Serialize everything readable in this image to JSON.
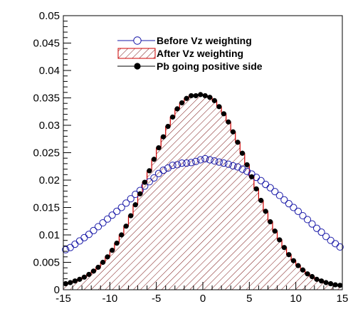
{
  "chart_data": {
    "type": "line",
    "title": "",
    "xlabel": "",
    "ylabel": "",
    "xlim": [
      -15,
      15
    ],
    "ylim": [
      0,
      0.05
    ],
    "xticks": [
      -15,
      -10,
      -5,
      0,
      5,
      10,
      15
    ],
    "yticks": [
      0,
      0.005,
      0.01,
      0.015,
      0.02,
      0.025,
      0.03,
      0.035,
      0.04,
      0.045,
      0.05
    ],
    "xtick_labels": [
      "-15",
      "-10",
      "-5",
      "0",
      "5",
      "10",
      "15"
    ],
    "ytick_labels": [
      "0",
      "0.005",
      "0.01",
      "0.015",
      "0.02",
      "0.025",
      "0.03",
      "0.035",
      "0.04",
      "0.045",
      "0.05"
    ],
    "grid": false,
    "legend_position": "top-center",
    "bin_width": 0.5,
    "x": [
      -14.75,
      -14.25,
      -13.75,
      -13.25,
      -12.75,
      -12.25,
      -11.75,
      -11.25,
      -10.75,
      -10.25,
      -9.75,
      -9.25,
      -8.75,
      -8.25,
      -7.75,
      -7.25,
      -6.75,
      -6.25,
      -5.75,
      -5.25,
      -4.75,
      -4.25,
      -3.75,
      -3.25,
      -2.75,
      -2.25,
      -1.75,
      -1.25,
      -0.75,
      -0.25,
      0.25,
      0.75,
      1.25,
      1.75,
      2.25,
      2.75,
      3.25,
      3.75,
      4.25,
      4.75,
      5.25,
      5.75,
      6.25,
      6.75,
      7.25,
      7.75,
      8.25,
      8.75,
      9.25,
      9.75,
      10.25,
      10.75,
      11.25,
      11.75,
      12.25,
      12.75,
      13.25,
      13.75,
      14.25,
      14.75
    ],
    "series": [
      {
        "name": "Before Vz weighting",
        "style": "open-circle",
        "color": "#1a1aa8",
        "values": [
          0.0073,
          0.0077,
          0.0083,
          0.0089,
          0.0095,
          0.0101,
          0.0108,
          0.0115,
          0.0122,
          0.0129,
          0.0136,
          0.0143,
          0.015,
          0.0158,
          0.0166,
          0.0174,
          0.0181,
          0.0189,
          0.0197,
          0.0204,
          0.0212,
          0.0218,
          0.0222,
          0.0227,
          0.0228,
          0.0231,
          0.0231,
          0.0232,
          0.0234,
          0.0237,
          0.0239,
          0.0237,
          0.0235,
          0.0233,
          0.0231,
          0.0229,
          0.0226,
          0.0224,
          0.022,
          0.0216,
          0.0211,
          0.0205,
          0.0199,
          0.0192,
          0.0186,
          0.0179,
          0.0172,
          0.0164,
          0.0157,
          0.015,
          0.0143,
          0.0135,
          0.0128,
          0.012,
          0.0112,
          0.0105,
          0.0097,
          0.009,
          0.0084,
          0.0078
        ]
      },
      {
        "name": "After Vz weighting",
        "style": "hatched-histogram",
        "color": "#d10000",
        "values": [
          0.0011,
          0.0013,
          0.0016,
          0.0019,
          0.0023,
          0.0028,
          0.0034,
          0.0041,
          0.005,
          0.006,
          0.0072,
          0.0085,
          0.01,
          0.0116,
          0.0135,
          0.0155,
          0.0175,
          0.0196,
          0.0217,
          0.0238,
          0.0259,
          0.0279,
          0.0298,
          0.0315,
          0.033,
          0.0341,
          0.0349,
          0.0354,
          0.0354,
          0.0356,
          0.0354,
          0.0351,
          0.0345,
          0.0334,
          0.0321,
          0.0306,
          0.0288,
          0.0269,
          0.0249,
          0.0228,
          0.0206,
          0.0184,
          0.0163,
          0.0143,
          0.0124,
          0.0107,
          0.0091,
          0.0077,
          0.0064,
          0.0053,
          0.0044,
          0.0036,
          0.0029,
          0.0024,
          0.0019,
          0.0016,
          0.0013,
          0.0011,
          0.0009,
          0.0008
        ]
      },
      {
        "name": "Pb going positive side",
        "style": "filled-circle",
        "color": "#000000",
        "values": [
          0.0011,
          0.0013,
          0.0016,
          0.0019,
          0.0023,
          0.0028,
          0.0034,
          0.0041,
          0.005,
          0.006,
          0.0072,
          0.0085,
          0.01,
          0.0116,
          0.0135,
          0.0155,
          0.0175,
          0.0196,
          0.0217,
          0.0238,
          0.0259,
          0.0279,
          0.0298,
          0.0315,
          0.033,
          0.0341,
          0.0349,
          0.0354,
          0.0354,
          0.0356,
          0.0354,
          0.0351,
          0.0345,
          0.0334,
          0.0321,
          0.0306,
          0.0288,
          0.0269,
          0.0249,
          0.0228,
          0.0206,
          0.0184,
          0.0163,
          0.0143,
          0.0124,
          0.0107,
          0.0091,
          0.0077,
          0.0064,
          0.0053,
          0.0044,
          0.0036,
          0.0029,
          0.0024,
          0.0019,
          0.0016,
          0.0013,
          0.0011,
          0.0009,
          0.0008
        ]
      }
    ]
  }
}
